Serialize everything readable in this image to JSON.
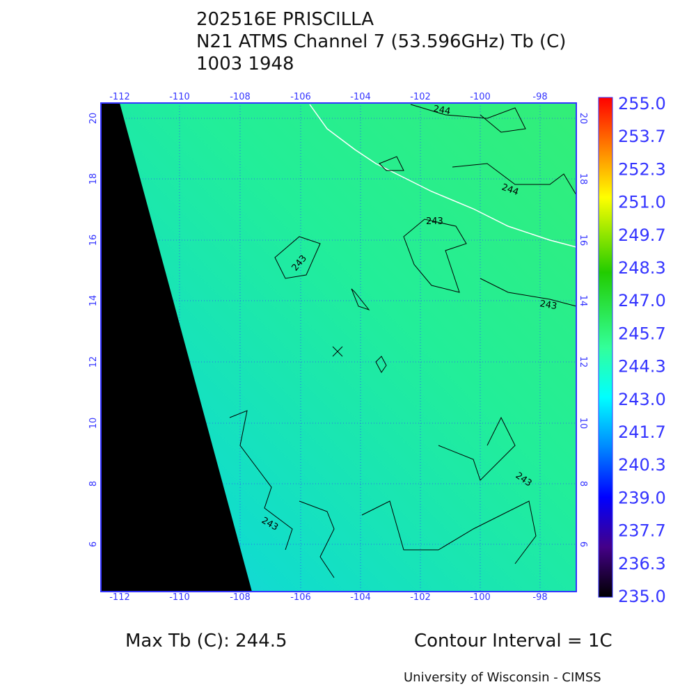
{
  "header": {
    "lines": [
      "202516E PRISCILLA",
      "N21 ATMS Channel 7 (53.596GHz) Tb (C)",
      "1003 1948"
    ]
  },
  "map": {
    "lon_labels": [
      "-112",
      "-110",
      "-108",
      "-106",
      "-104",
      "-102",
      "-100",
      "-98"
    ],
    "lat_labels": [
      "20",
      "18",
      "16",
      "14",
      "12",
      "10",
      "8",
      "6"
    ],
    "contour_labels": [
      "244",
      "244",
      "243",
      "243",
      "243",
      "243",
      "243"
    ]
  },
  "colorbar": {
    "labels": [
      "255.0",
      "253.7",
      "252.3",
      "251.0",
      "249.7",
      "248.3",
      "247.0",
      "245.7",
      "244.3",
      "243.0",
      "241.7",
      "240.3",
      "239.0",
      "237.7",
      "236.3",
      "235.0"
    ]
  },
  "footer": {
    "max_tb": "Max Tb (C): 244.5",
    "contour_interval": "Contour Interval = 1C",
    "credit": "University of Wisconsin - CIMSS"
  }
}
